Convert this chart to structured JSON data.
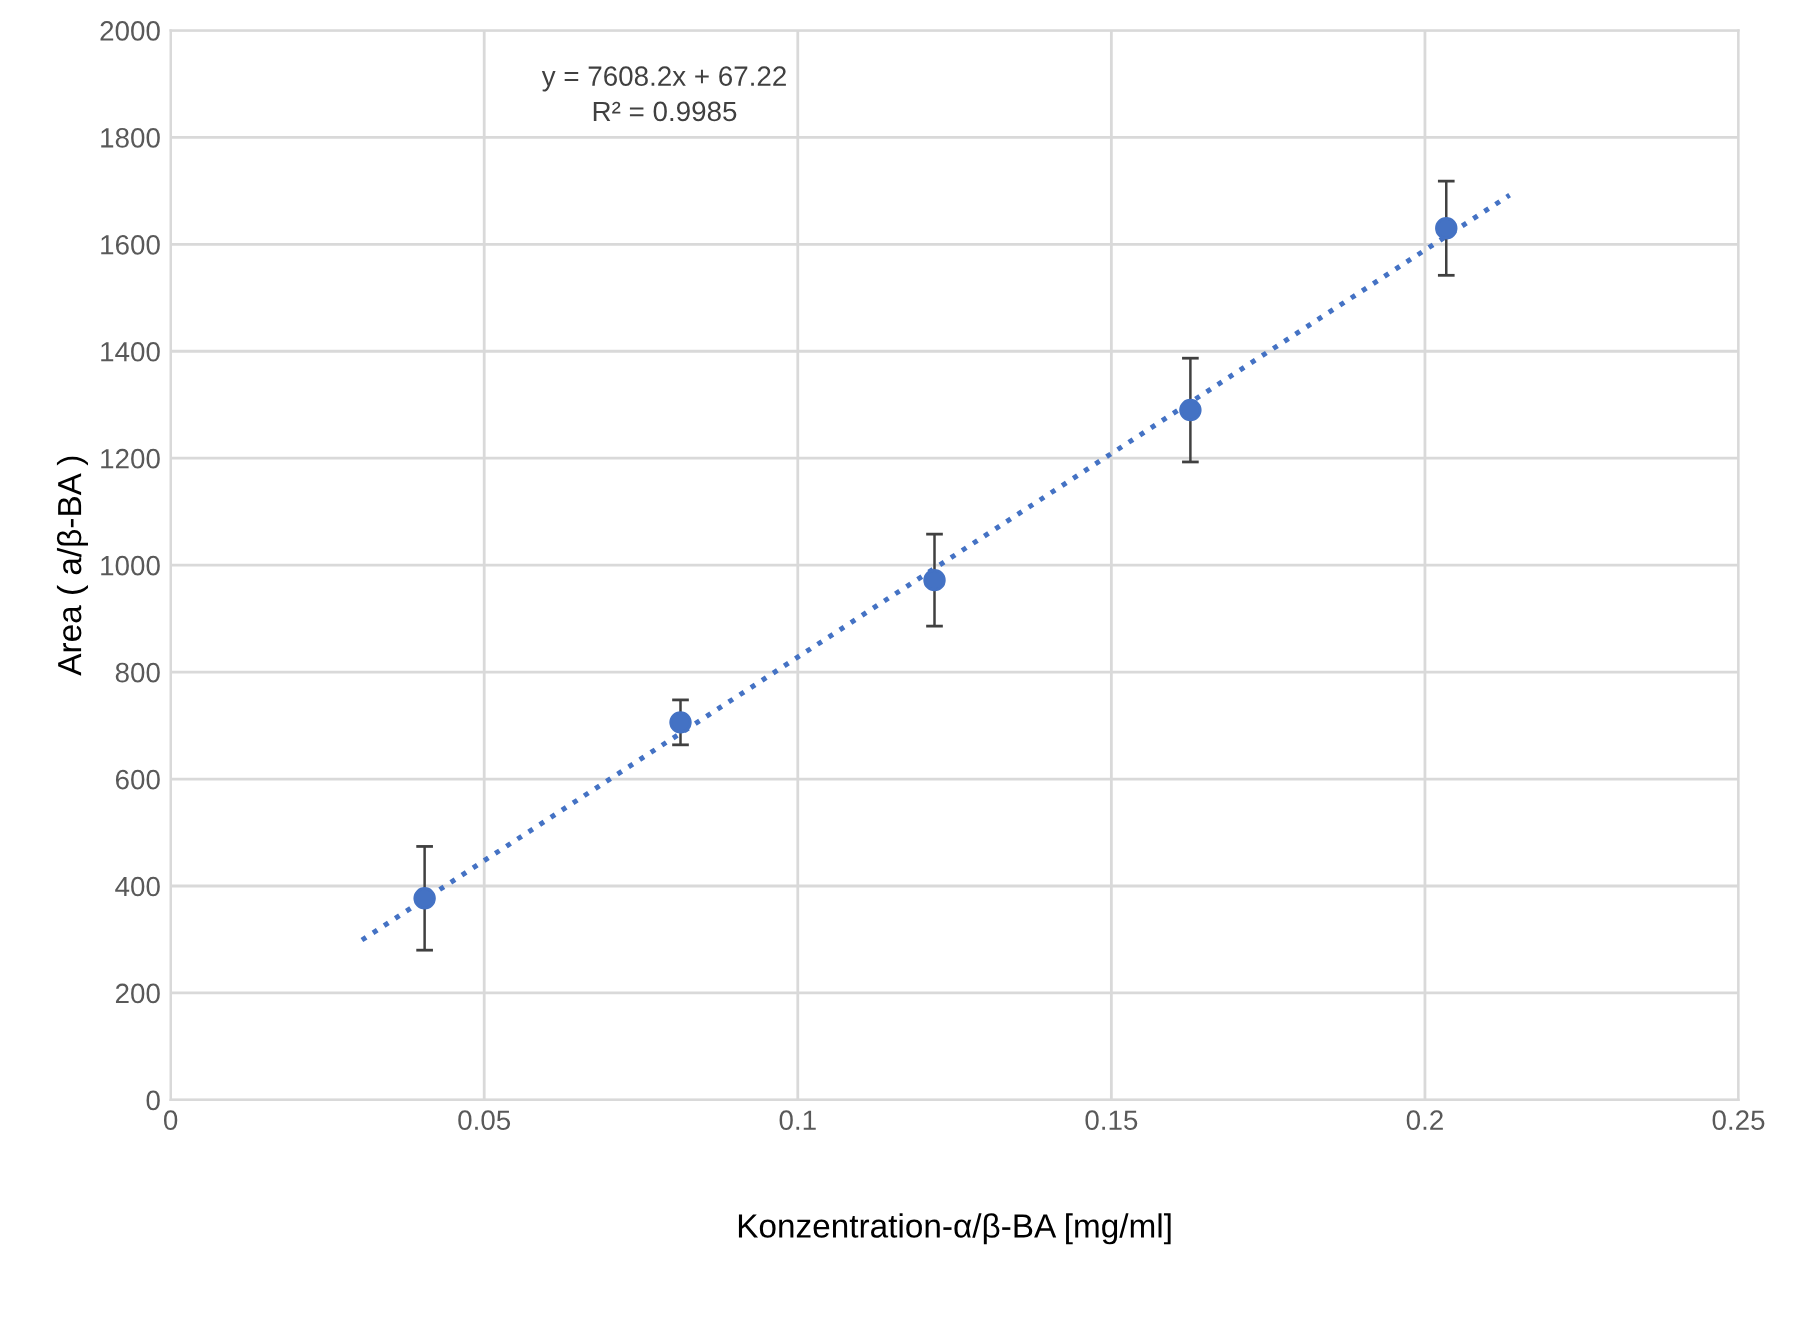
{
  "chart_data": {
    "type": "scatter",
    "xlabel": "Konzentration-α/β-BA [mg/ml]",
    "ylabel": "Area ( a/β-BA )",
    "annotations": [
      "y = 7608.2x + 67.22",
      "R² = 0.9985"
    ],
    "x": [
      0.0405,
      0.0813,
      0.1218,
      0.1626,
      0.2034
    ],
    "series": [
      {
        "color": "#4472c4",
        "values": [
          377,
          706,
          972,
          1290,
          1630
        ],
        "errors": [
          97,
          42,
          86,
          97,
          88
        ],
        "marker": "circle"
      },
      {
        "type": "line",
        "color": "#4472c4",
        "x": [
          0.0305,
          0.2135
        ],
        "values": [
          299,
          1692
        ],
        "line_style": "dotted",
        "marker": "none"
      }
    ],
    "xlim": [
      0,
      0.25
    ],
    "xticks": [
      0,
      0.05,
      0.1,
      0.15,
      0.2,
      0.25
    ],
    "ylim": [
      0,
      2000
    ],
    "yticks": [
      0,
      200,
      400,
      600,
      800,
      1000,
      1200,
      1400,
      1600,
      1800,
      2000
    ],
    "grid": true,
    "legend": false
  }
}
